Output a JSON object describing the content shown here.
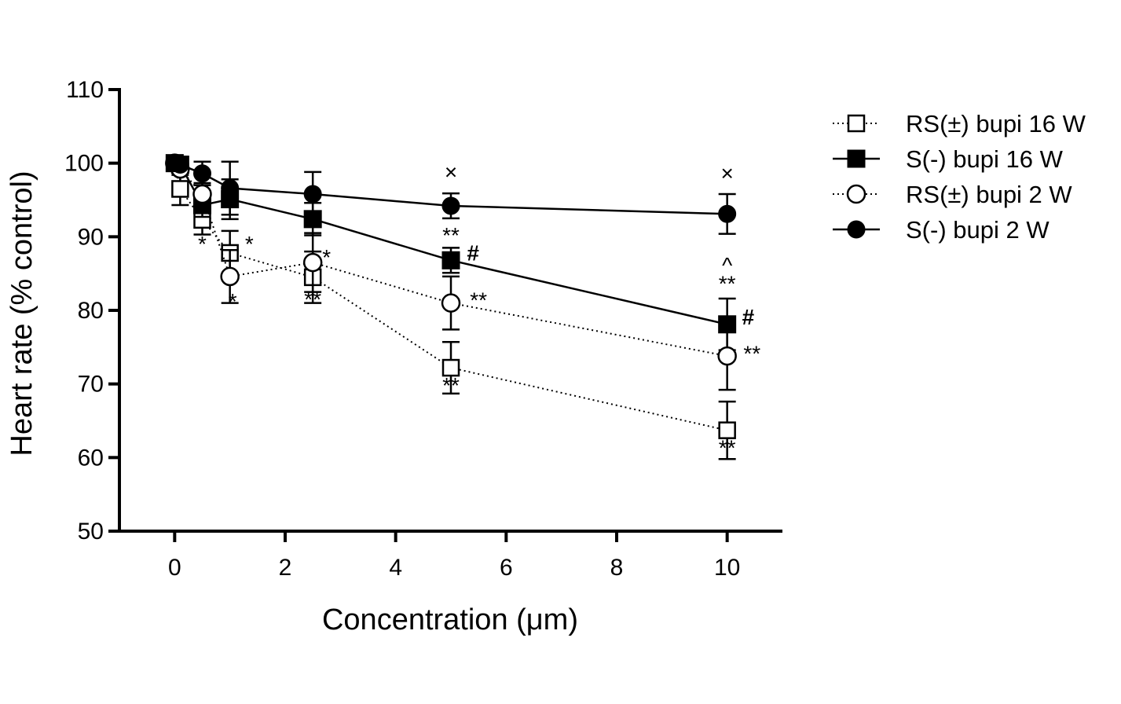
{
  "chart_data": {
    "type": "line",
    "title": "",
    "xlabel": "Concentration (μm)",
    "ylabel": "Heart rate (% control)",
    "xlim": [
      -1,
      11
    ],
    "ylim": [
      50,
      110
    ],
    "xticks": [
      0,
      2,
      4,
      6,
      8,
      10
    ],
    "yticks": [
      50,
      60,
      70,
      80,
      90,
      100,
      110
    ],
    "grid": false,
    "legend_position": "right",
    "series": [
      {
        "name": "RS(±) bupi 16 W",
        "marker": "open-square",
        "line": "dotted",
        "x": [
          0,
          0.1,
          0.5,
          1,
          2.5,
          5,
          10
        ],
        "y": [
          100,
          96.5,
          92.3,
          87.8,
          84.5,
          72.2,
          63.7
        ],
        "err": [
          0,
          2.2,
          2.0,
          3.0,
          3.5,
          3.5,
          3.9
        ]
      },
      {
        "name": "S(-) bupi 16 W",
        "marker": "filled-square",
        "line": "solid",
        "x": [
          0,
          0.1,
          0.5,
          1,
          2.5,
          5,
          10
        ],
        "y": [
          100,
          99.8,
          94.3,
          95.1,
          92.4,
          86.8,
          78.1
        ],
        "err": [
          0,
          0.7,
          1.6,
          2.7,
          2.2,
          1.7,
          3.5
        ]
      },
      {
        "name": "RS(±) bupi 2 W",
        "marker": "open-circle",
        "line": "dotted",
        "x": [
          0,
          0.1,
          0.5,
          1,
          2.5,
          5,
          10
        ],
        "y": [
          100,
          99.2,
          95.8,
          84.6,
          86.5,
          81.0,
          73.8
        ],
        "err": [
          0,
          0.8,
          1.5,
          3.6,
          4.0,
          3.6,
          4.6
        ]
      },
      {
        "name": "S(-) bupi 2 W",
        "marker": "filled-circle",
        "line": "solid",
        "x": [
          0,
          0.1,
          0.5,
          1,
          2.5,
          5,
          10
        ],
        "y": [
          100,
          99.8,
          98.6,
          96.6,
          95.8,
          94.2,
          93.1
        ],
        "err": [
          0,
          0.5,
          1.6,
          3.6,
          3.0,
          1.7,
          2.7
        ]
      }
    ],
    "annotations": [
      {
        "text": "*",
        "x": 0.5,
        "y": 88,
        "weight": "normal"
      },
      {
        "text": "*",
        "x": 1.35,
        "y": 88,
        "weight": "normal"
      },
      {
        "text": "*",
        "x": 1.05,
        "y": 80.2,
        "weight": "normal"
      },
      {
        "text": "*",
        "x": 2.75,
        "y": 86.2,
        "weight": "normal"
      },
      {
        "text": "**",
        "x": 2.5,
        "y": 80.5,
        "weight": "normal"
      },
      {
        "text": "×",
        "x": 5,
        "y": 97.8,
        "weight": "normal"
      },
      {
        "text": "**",
        "x": 5,
        "y": 89.2,
        "weight": "normal"
      },
      {
        "text": "#",
        "x": 5.4,
        "y": 86.8,
        "weight": "bold"
      },
      {
        "text": "**",
        "x": 5.5,
        "y": 80.4,
        "weight": "normal"
      },
      {
        "text": "**",
        "x": 5,
        "y": 68.8,
        "weight": "normal"
      },
      {
        "text": "×",
        "x": 10,
        "y": 97.6,
        "weight": "normal"
      },
      {
        "text": "^",
        "x": 10,
        "y": 85.1,
        "weight": "normal"
      },
      {
        "text": "**",
        "x": 10,
        "y": 82.6,
        "weight": "normal"
      },
      {
        "text": "#",
        "x": 10.38,
        "y": 78.1,
        "weight": "bold"
      },
      {
        "text": "**",
        "x": 10.45,
        "y": 73.1,
        "weight": "normal"
      },
      {
        "text": "**",
        "x": 10,
        "y": 60.3,
        "weight": "normal"
      }
    ]
  }
}
